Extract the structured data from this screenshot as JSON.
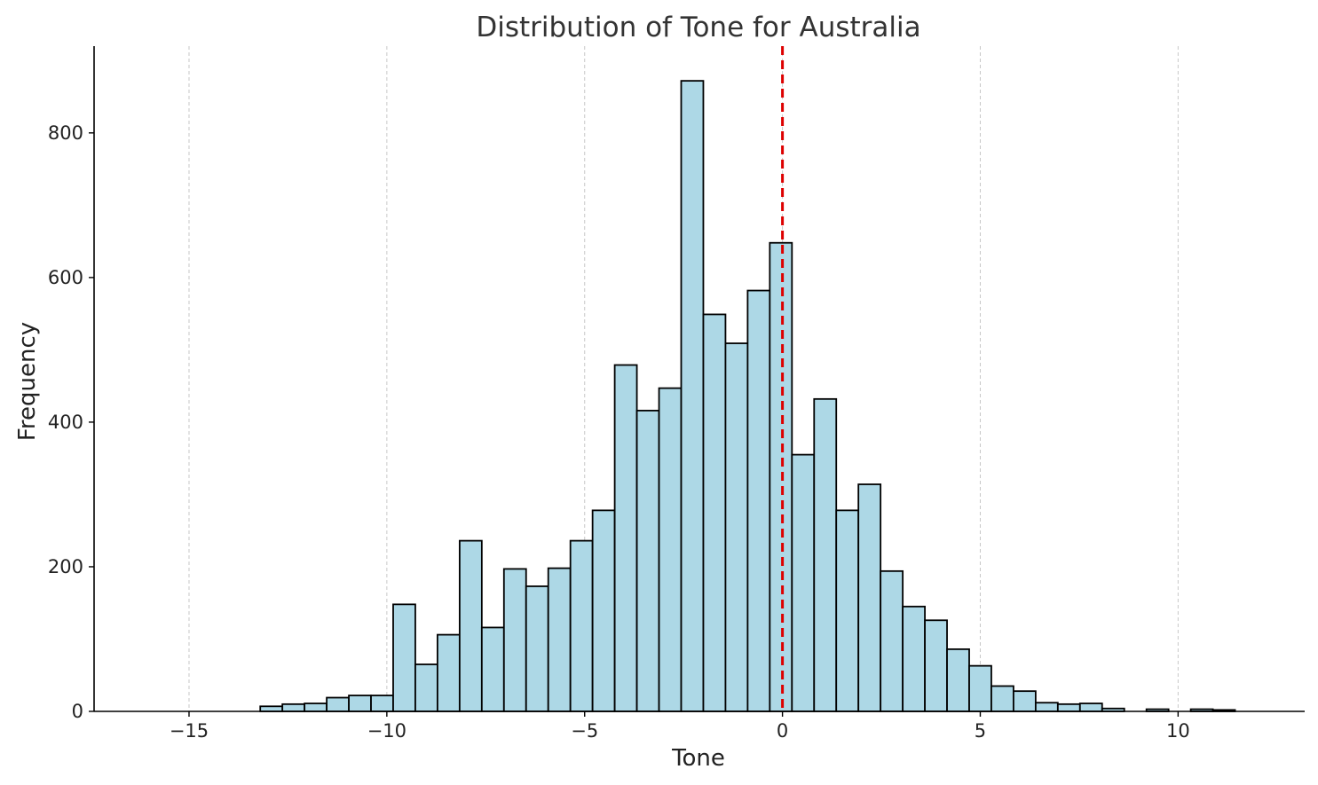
{
  "chart_data": {
    "type": "bar",
    "title": "Distribution of Tone for Australia",
    "xlabel": "Tone",
    "ylabel": "Frequency",
    "xlim": [
      -17.4,
      13.2
    ],
    "ylim": [
      0,
      920
    ],
    "x_ticks": [
      -15,
      -10,
      -5,
      0,
      5,
      10
    ],
    "x_tick_labels": [
      "−15",
      "−10",
      "−5",
      "0",
      "5",
      "10"
    ],
    "y_ticks": [
      0,
      200,
      400,
      600,
      800
    ],
    "y_tick_labels": [
      "0",
      "200",
      "400",
      "600",
      "800"
    ],
    "grid": "vertical dashed",
    "bar_color": "#add8e6",
    "edge_color": "#000000",
    "reference_line": {
      "x": 0,
      "color": "#dd0000",
      "style": "dashed"
    },
    "bins": [
      {
        "x0": -13.2,
        "x1": -12.64,
        "value": 7
      },
      {
        "x0": -12.64,
        "x1": -12.08,
        "value": 10
      },
      {
        "x0": -12.08,
        "x1": -11.52,
        "value": 11
      },
      {
        "x0": -11.52,
        "x1": -10.96,
        "value": 19
      },
      {
        "x0": -10.96,
        "x1": -10.4,
        "value": 22
      },
      {
        "x0": -10.4,
        "x1": -9.84,
        "value": 22
      },
      {
        "x0": -9.84,
        "x1": -9.28,
        "value": 148
      },
      {
        "x0": -9.28,
        "x1": -8.72,
        "value": 65
      },
      {
        "x0": -8.72,
        "x1": -8.16,
        "value": 106
      },
      {
        "x0": -8.16,
        "x1": -7.6,
        "value": 236
      },
      {
        "x0": -7.6,
        "x1": -7.04,
        "value": 116
      },
      {
        "x0": -7.04,
        "x1": -6.48,
        "value": 197
      },
      {
        "x0": -6.48,
        "x1": -5.92,
        "value": 173
      },
      {
        "x0": -5.92,
        "x1": -5.36,
        "value": 198
      },
      {
        "x0": -5.36,
        "x1": -4.8,
        "value": 236
      },
      {
        "x0": -4.8,
        "x1": -4.24,
        "value": 278
      },
      {
        "x0": -4.24,
        "x1": -3.68,
        "value": 479
      },
      {
        "x0": -3.68,
        "x1": -3.12,
        "value": 416
      },
      {
        "x0": -3.12,
        "x1": -2.56,
        "value": 447
      },
      {
        "x0": -2.56,
        "x1": -2.0,
        "value": 872
      },
      {
        "x0": -2.0,
        "x1": -1.44,
        "value": 549
      },
      {
        "x0": -1.44,
        "x1": -0.88,
        "value": 509
      },
      {
        "x0": -0.88,
        "x1": -0.32,
        "value": 582
      },
      {
        "x0": -0.32,
        "x1": 0.24,
        "value": 648
      },
      {
        "x0": 0.24,
        "x1": 0.8,
        "value": 355
      },
      {
        "x0": 0.8,
        "x1": 1.36,
        "value": 432
      },
      {
        "x0": 1.36,
        "x1": 1.92,
        "value": 278
      },
      {
        "x0": 1.92,
        "x1": 2.48,
        "value": 314
      },
      {
        "x0": 2.48,
        "x1": 3.04,
        "value": 194
      },
      {
        "x0": 3.04,
        "x1": 3.6,
        "value": 145
      },
      {
        "x0": 3.6,
        "x1": 4.16,
        "value": 126
      },
      {
        "x0": 4.16,
        "x1": 4.72,
        "value": 86
      },
      {
        "x0": 4.72,
        "x1": 5.28,
        "value": 63
      },
      {
        "x0": 5.28,
        "x1": 5.84,
        "value": 35
      },
      {
        "x0": 5.84,
        "x1": 6.4,
        "value": 28
      },
      {
        "x0": 6.4,
        "x1": 6.96,
        "value": 12
      },
      {
        "x0": 6.96,
        "x1": 7.52,
        "value": 10
      },
      {
        "x0": 7.52,
        "x1": 8.08,
        "value": 11
      },
      {
        "x0": 8.08,
        "x1": 8.64,
        "value": 4
      },
      {
        "x0": 8.64,
        "x1": 9.2,
        "value": 0
      },
      {
        "x0": 9.2,
        "x1": 9.76,
        "value": 3
      },
      {
        "x0": 9.76,
        "x1": 10.32,
        "value": 0
      },
      {
        "x0": 10.32,
        "x1": 10.88,
        "value": 3
      },
      {
        "x0": 10.88,
        "x1": 11.44,
        "value": 2
      }
    ]
  }
}
